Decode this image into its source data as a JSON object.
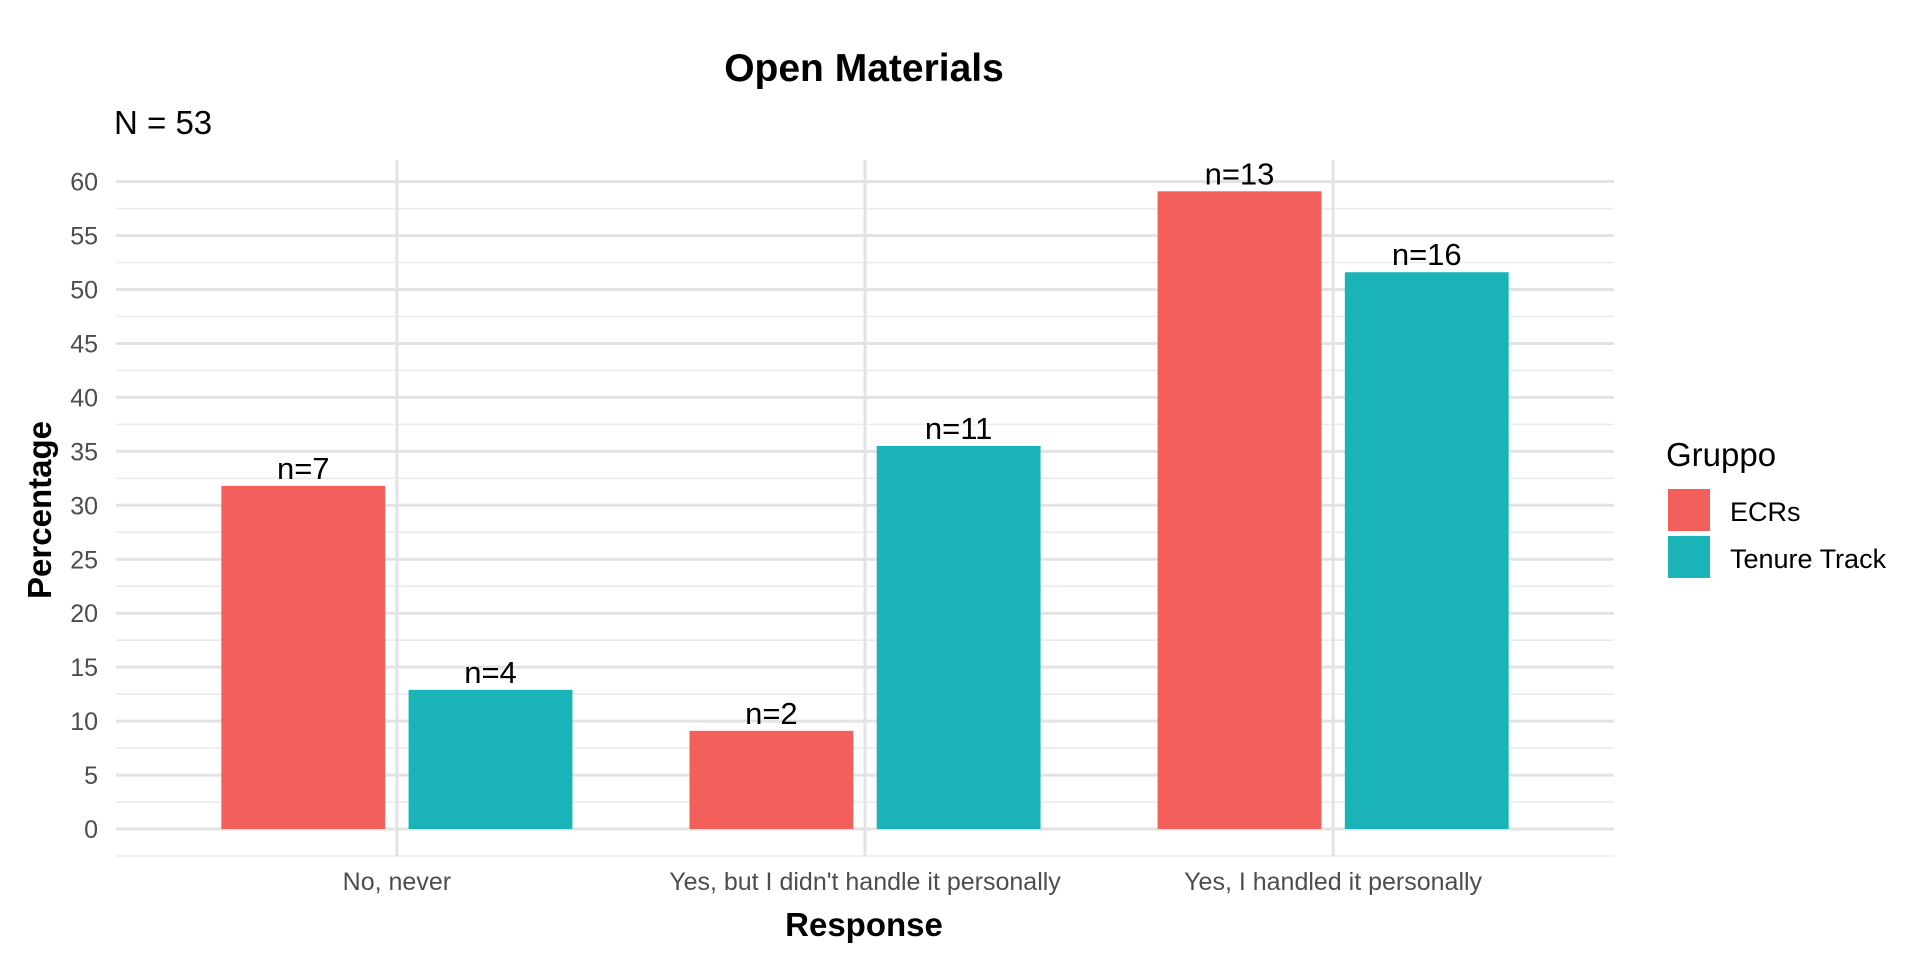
{
  "chart_data": {
    "type": "bar",
    "title": "Open Materials",
    "subtitle": "N = 53",
    "xlabel": "Response",
    "ylabel": "Percentage",
    "categories": [
      "No, never",
      "Yes, but I didn't handle it personally",
      "Yes, I handled it personally"
    ],
    "series": [
      {
        "name": "ECRs",
        "color": "#F35F5B",
        "values": [
          31.8,
          9.1,
          59.1
        ],
        "labels": [
          "n=7",
          "n=2",
          "n=13"
        ]
      },
      {
        "name": "Tenure Track",
        "color": "#1AB4B8",
        "values": [
          12.9,
          35.5,
          51.6
        ],
        "labels": [
          "n=4",
          "n=11",
          "n=16"
        ]
      }
    ],
    "ylim": [
      -2.5,
      62
    ],
    "yticks": [
      0,
      5,
      10,
      15,
      20,
      25,
      30,
      35,
      40,
      45,
      50,
      55,
      60
    ],
    "grid": true,
    "legend": {
      "title": "Gruppo",
      "position": "right"
    }
  }
}
